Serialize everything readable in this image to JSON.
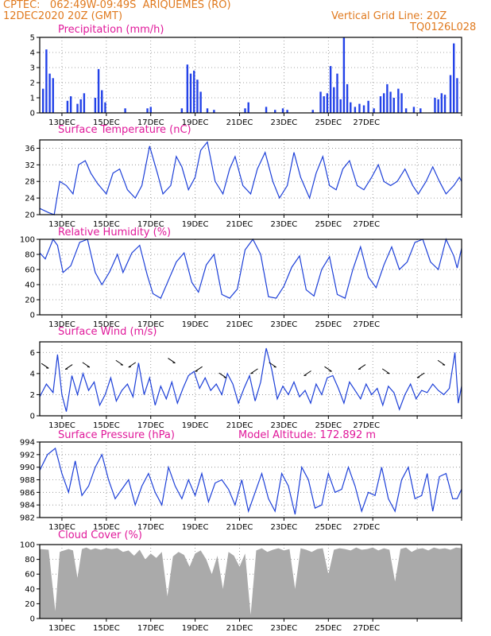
{
  "header": {
    "line1": "CPTEC:   062:49W-09:49S  ARIQUEMES (RO)",
    "line2": "12DEC2020 20Z (GMT)",
    "grid_note": "Vertical Grid Line: 20Z",
    "code": "TQ0126L028"
  },
  "x_labels": [
    "13DEC",
    "15DEC",
    "17DEC",
    "19DEC",
    "21DEC",
    "23DEC",
    "25DEC",
    "27DEC"
  ],
  "colors": {
    "header": "#e07a1f",
    "title": "#e0189a",
    "line": "#1c3fd8",
    "bar": "#2342e8",
    "cloud": "#aaaaaa"
  },
  "chart_data": [
    {
      "type": "bar",
      "title": "Precipitation (mm/h)",
      "ylim": [
        0,
        5
      ],
      "yticks": [
        0,
        1,
        2,
        3,
        4,
        5
      ],
      "bars": [
        [
          0.3,
          1.6
        ],
        [
          0.6,
          4.2
        ],
        [
          0.9,
          2.6
        ],
        [
          1.2,
          2.3
        ],
        [
          2.5,
          0.8
        ],
        [
          2.8,
          1.1
        ],
        [
          3.4,
          0.6
        ],
        [
          3.7,
          0.9
        ],
        [
          4.0,
          1.3
        ],
        [
          5.0,
          1.0
        ],
        [
          5.3,
          2.9
        ],
        [
          5.6,
          1.5
        ],
        [
          5.9,
          0.7
        ],
        [
          7.7,
          0.3
        ],
        [
          9.7,
          0.3
        ],
        [
          10.0,
          0.4
        ],
        [
          12.8,
          0.3
        ],
        [
          13.3,
          3.2
        ],
        [
          13.6,
          2.6
        ],
        [
          13.9,
          2.8
        ],
        [
          14.2,
          2.2
        ],
        [
          14.5,
          1.4
        ],
        [
          15.1,
          0.3
        ],
        [
          15.7,
          0.2
        ],
        [
          18.5,
          0.3
        ],
        [
          18.8,
          0.7
        ],
        [
          20.4,
          0.4
        ],
        [
          21.2,
          0.2
        ],
        [
          21.9,
          0.3
        ],
        [
          22.3,
          0.2
        ],
        [
          24.6,
          0.2
        ],
        [
          25.3,
          1.4
        ],
        [
          25.6,
          1.1
        ],
        [
          25.9,
          1.3
        ],
        [
          26.2,
          3.1
        ],
        [
          26.5,
          1.7
        ],
        [
          26.8,
          2.6
        ],
        [
          27.1,
          0.9
        ],
        [
          27.4,
          5.0
        ],
        [
          27.7,
          1.9
        ],
        [
          28.0,
          0.7
        ],
        [
          28.4,
          0.4
        ],
        [
          28.8,
          0.6
        ],
        [
          29.2,
          0.5
        ],
        [
          29.6,
          0.8
        ],
        [
          30.1,
          0.3
        ],
        [
          30.7,
          1.1
        ],
        [
          31.0,
          1.3
        ],
        [
          31.3,
          1.9
        ],
        [
          31.6,
          1.4
        ],
        [
          31.9,
          1.0
        ],
        [
          32.3,
          1.6
        ],
        [
          32.6,
          1.3
        ],
        [
          33.0,
          0.3
        ],
        [
          33.7,
          0.4
        ],
        [
          34.3,
          0.3
        ],
        [
          35.6,
          1.0
        ],
        [
          35.9,
          0.9
        ],
        [
          36.2,
          1.3
        ],
        [
          36.5,
          1.2
        ],
        [
          37.0,
          2.5
        ],
        [
          37.3,
          4.6
        ],
        [
          37.6,
          2.3
        ]
      ]
    },
    {
      "type": "line",
      "title": "Surface Temperature (nC)",
      "ylim": [
        20,
        38
      ],
      "yticks": [
        20,
        24,
        28,
        32,
        36
      ],
      "x": [
        0,
        0.8,
        1.3,
        1.8,
        2.4,
        3.0,
        3.5,
        4.1,
        4.6,
        5.2,
        6.0,
        6.6,
        7.2,
        7.9,
        8.6,
        9.2,
        9.9,
        10.6,
        11.1,
        11.8,
        12.3,
        12.8,
        13.4,
        14.0,
        14.5,
        15.1,
        15.8,
        16.5,
        17.1,
        17.6,
        18.3,
        19.0,
        19.6,
        20.3,
        21.0,
        21.6,
        22.3,
        22.9,
        23.5,
        24.3,
        24.9,
        25.5,
        26.1,
        26.7,
        27.3,
        27.9,
        28.6,
        29.2,
        29.9,
        30.5,
        31.0,
        31.6,
        32.2,
        32.9,
        33.6,
        34.1,
        34.8,
        35.4,
        36.0,
        36.6,
        37.3,
        37.8,
        38.0
      ],
      "y": [
        21.5,
        20.5,
        20,
        28,
        27,
        25,
        32,
        33,
        30,
        27.5,
        25,
        30,
        31,
        26,
        24,
        27,
        36.5,
        30,
        25,
        27,
        34,
        31.5,
        26,
        29,
        35.5,
        37.5,
        28,
        25,
        31,
        34,
        27,
        25,
        31,
        35,
        28,
        24,
        27,
        35,
        29,
        24,
        30,
        34,
        27,
        26,
        31,
        33,
        27,
        26,
        29,
        32,
        28,
        27,
        28,
        31,
        27,
        25,
        28,
        31.5,
        28,
        25,
        27,
        29,
        28
      ]
    },
    {
      "type": "line",
      "title": "Relative Humidity (%)",
      "ylim": [
        0,
        100
      ],
      "yticks": [
        0,
        20,
        40,
        60,
        80,
        100
      ],
      "x": [
        0,
        0.5,
        1.2,
        1.6,
        2.1,
        2.8,
        3.6,
        4.3,
        5.0,
        5.6,
        6.3,
        7.0,
        7.5,
        8.3,
        9.0,
        9.7,
        10.2,
        10.9,
        11.6,
        12.3,
        13.0,
        13.7,
        14.3,
        15.0,
        15.7,
        16.4,
        17.1,
        17.8,
        18.5,
        19.2,
        19.9,
        20.6,
        21.3,
        22.0,
        22.7,
        23.4,
        24.0,
        24.7,
        25.4,
        26.1,
        26.8,
        27.5,
        28.2,
        28.9,
        29.6,
        30.3,
        31.0,
        31.7,
        32.4,
        33.1,
        33.8,
        34.5,
        35.2,
        35.9,
        36.6,
        37.3,
        37.6,
        38.0
      ],
      "y": [
        82,
        74,
        100,
        92,
        56,
        65,
        96,
        100,
        56,
        40,
        57,
        80,
        56,
        82,
        92,
        52,
        28,
        22,
        46,
        70,
        82,
        43,
        30,
        66,
        80,
        27,
        22,
        34,
        86,
        100,
        80,
        24,
        22,
        38,
        63,
        78,
        33,
        25,
        60,
        77,
        27,
        22,
        60,
        90,
        50,
        36,
        66,
        90,
        60,
        70,
        96,
        100,
        70,
        60,
        100,
        78,
        62,
        88
      ]
    },
    {
      "type": "line",
      "title": "Surface Wind (m/s)",
      "ylim": [
        0,
        7
      ],
      "yticks": [
        0,
        2,
        4,
        6
      ],
      "x": [
        0,
        0.6,
        1.2,
        1.6,
        2.0,
        2.4,
        2.9,
        3.4,
        3.9,
        4.4,
        4.9,
        5.4,
        5.9,
        6.4,
        6.9,
        7.4,
        7.9,
        8.4,
        8.9,
        9.4,
        9.9,
        10.4,
        10.9,
        11.4,
        11.9,
        12.4,
        12.9,
        13.4,
        13.9,
        14.4,
        14.9,
        15.4,
        15.9,
        16.4,
        16.9,
        17.4,
        17.9,
        18.4,
        18.9,
        19.4,
        19.9,
        20.4,
        20.9,
        21.4,
        21.9,
        22.4,
        22.9,
        23.4,
        23.9,
        24.4,
        24.9,
        25.4,
        25.9,
        26.4,
        26.9,
        27.4,
        27.9,
        28.4,
        28.9,
        29.4,
        29.9,
        30.4,
        30.9,
        31.4,
        31.9,
        32.4,
        32.9,
        33.4,
        33.9,
        34.4,
        34.9,
        35.4,
        35.9,
        36.4,
        36.9,
        37.4,
        37.7,
        38.0
      ],
      "y": [
        1.8,
        3.0,
        2.2,
        5.8,
        2.0,
        0.4,
        3.8,
        2.0,
        4.0,
        2.4,
        3.2,
        1.0,
        2.0,
        3.6,
        1.4,
        2.4,
        3.0,
        1.8,
        5.0,
        2.0,
        3.6,
        1.0,
        2.8,
        1.6,
        3.2,
        1.2,
        2.6,
        3.8,
        4.2,
        2.6,
        3.6,
        2.4,
        3.0,
        2.0,
        4.0,
        3.0,
        1.2,
        2.6,
        3.8,
        1.4,
        3.2,
        6.4,
        4.4,
        1.6,
        2.8,
        2.0,
        3.2,
        1.8,
        2.4,
        1.2,
        3.0,
        2.0,
        3.6,
        3.8,
        2.6,
        1.2,
        3.2,
        2.4,
        1.6,
        3.0,
        2.0,
        2.6,
        1.0,
        2.8,
        2.2,
        0.6,
        2.0,
        3.0,
        1.6,
        2.4,
        2.2,
        3.0,
        2.4,
        2.0,
        2.6,
        6.0,
        1.2,
        2.8
      ]
    },
    {
      "type": "line",
      "title": "Surface Pressure (hPa)",
      "annotation": "Model Altitude: 172.892 m",
      "ylim": [
        982,
        994
      ],
      "yticks": [
        982,
        984,
        986,
        988,
        990,
        992,
        994
      ],
      "x": [
        0,
        0.7,
        1.4,
        2.0,
        2.6,
        3.2,
        3.8,
        4.4,
        5.0,
        5.6,
        6.2,
        6.8,
        7.4,
        8.0,
        8.6,
        9.2,
        9.8,
        10.4,
        11.0,
        11.6,
        12.2,
        12.8,
        13.4,
        14.0,
        14.6,
        15.2,
        15.8,
        16.4,
        17.0,
        17.6,
        18.2,
        18.8,
        19.4,
        20.0,
        20.6,
        21.2,
        21.8,
        22.4,
        23.0,
        23.6,
        24.2,
        24.8,
        25.4,
        26.0,
        26.6,
        27.2,
        27.8,
        28.4,
        29.0,
        29.6,
        30.2,
        30.8,
        31.4,
        32.0,
        32.6,
        33.2,
        33.8,
        34.4,
        34.9,
        35.4,
        36.0,
        36.6,
        37.2,
        37.6,
        38.0
      ],
      "y": [
        989.5,
        992,
        993,
        989,
        986,
        991,
        985.5,
        987,
        990,
        992,
        988,
        985,
        986.5,
        988,
        984,
        987,
        989,
        986,
        984,
        990,
        987,
        985,
        988,
        985.5,
        989,
        984.5,
        987.5,
        988,
        986.5,
        984,
        988,
        983,
        986,
        989,
        985,
        983,
        989,
        987,
        982.5,
        990,
        988,
        983.5,
        984,
        989,
        986,
        986.5,
        990,
        987,
        983,
        986,
        985.5,
        990,
        985,
        983,
        988,
        990,
        985,
        985.5,
        989,
        983,
        988.5,
        989,
        985,
        985,
        986.5
      ]
    },
    {
      "type": "area",
      "title": "Cloud Cover (%)",
      "ylim": [
        0,
        100
      ],
      "yticks": [
        0,
        20,
        40,
        60,
        80,
        100
      ],
      "x": [
        0,
        0.8,
        1.4,
        1.8,
        2.2,
        2.6,
        3.0,
        3.4,
        3.8,
        4.2,
        4.6,
        5.0,
        5.5,
        6.0,
        6.5,
        7.0,
        7.5,
        8.0,
        8.5,
        9.0,
        9.5,
        10.0,
        10.5,
        11.0,
        11.5,
        12.0,
        12.5,
        13.0,
        13.5,
        14.0,
        14.5,
        15.0,
        15.5,
        16.0,
        16.5,
        17.0,
        17.5,
        18.0,
        18.5,
        19.0,
        19.5,
        20.0,
        20.5,
        21.0,
        21.5,
        22.0,
        22.5,
        23.0,
        23.5,
        24.0,
        24.5,
        25.0,
        25.5,
        26.0,
        26.5,
        27.0,
        27.5,
        28.0,
        28.5,
        29.0,
        29.5,
        30.0,
        30.5,
        31.0,
        31.5,
        32.0,
        32.5,
        33.0,
        33.5,
        34.0,
        34.5,
        35.0,
        35.5,
        36.0,
        36.5,
        37.0,
        37.5,
        38.0
      ],
      "y": [
        94,
        93,
        10,
        90,
        92,
        94,
        92,
        55,
        94,
        96,
        93,
        95,
        93,
        95,
        94,
        95,
        90,
        92,
        85,
        93,
        80,
        88,
        82,
        90,
        30,
        84,
        90,
        86,
        70,
        88,
        92,
        80,
        60,
        85,
        40,
        90,
        85,
        70,
        88,
        5,
        92,
        95,
        90,
        93,
        95,
        92,
        94,
        40,
        95,
        93,
        90,
        94,
        95,
        60,
        93,
        95,
        94,
        92,
        96,
        93,
        94,
        96,
        92,
        95,
        93,
        50,
        94,
        96,
        90,
        94,
        95,
        92,
        96,
        94,
        95,
        93,
        96,
        95
      ]
    }
  ]
}
